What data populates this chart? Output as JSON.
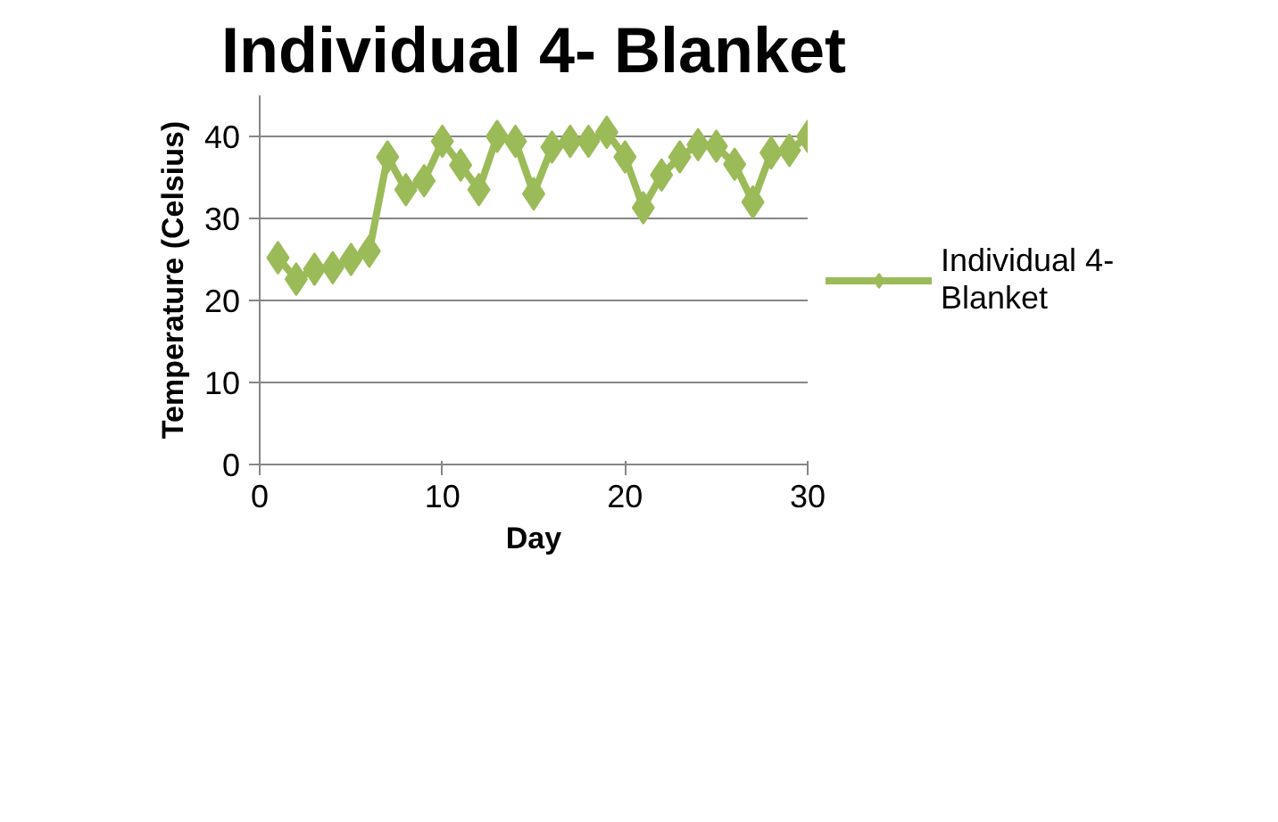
{
  "chart_data": {
    "type": "line",
    "title": "Individual 4- Blanket",
    "xlabel": "Day",
    "ylabel": "Temperature (Celsius)",
    "x": [
      1,
      2,
      3,
      4,
      5,
      6,
      7,
      8,
      9,
      10,
      11,
      12,
      13,
      14,
      15,
      16,
      17,
      18,
      19,
      20,
      21,
      22,
      23,
      24,
      25,
      26,
      27,
      28,
      29,
      30
    ],
    "series": [
      {
        "name": "Individual 4- Blanket",
        "color": "#9bbb59",
        "values": [
          25.2,
          22.6,
          23.8,
          24,
          25,
          26,
          37.5,
          33.5,
          34.6,
          39.4,
          36.5,
          33.5,
          40,
          39.4,
          33,
          38.7,
          39.4,
          39.4,
          40.5,
          37.5,
          31.3,
          35.3,
          37.5,
          39,
          38.8,
          36.6,
          32,
          38,
          38.3,
          40
        ]
      }
    ],
    "xlim": [
      0,
      30
    ],
    "xticks": [
      0,
      10,
      20,
      30
    ],
    "ylim": [
      0,
      45
    ],
    "yticks": [
      0,
      10,
      20,
      30,
      40
    ],
    "grid": "y",
    "legend": "right",
    "marker": "diamond",
    "line_style": "solid"
  }
}
